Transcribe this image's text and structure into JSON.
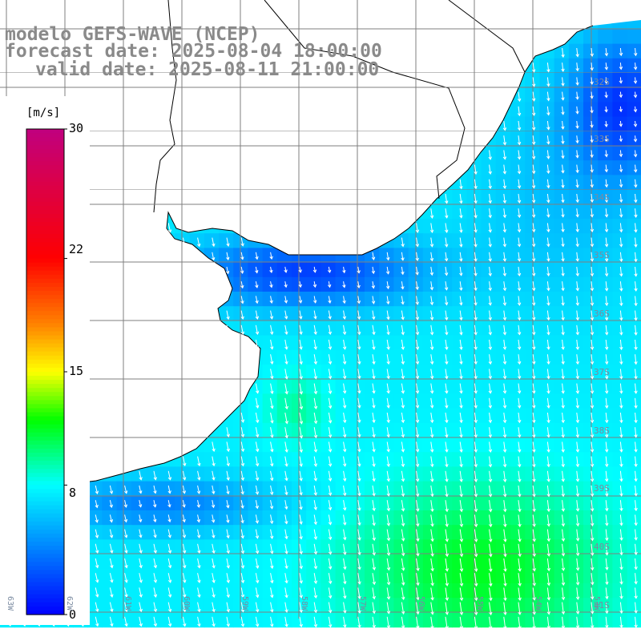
{
  "title": {
    "line1": "modelo GEFS-WAVE (NCEP)",
    "line2": "forecast date: 2025-08-04 18:00:00",
    "line3": "valid date: 2025-08-11 21:00:00"
  },
  "colorbar": {
    "unit": "[m/s]",
    "ticks": [
      "30",
      "22",
      "15",
      "8",
      "0"
    ],
    "tick_values": [
      30,
      22,
      15,
      8,
      0
    ],
    "min": 0,
    "max": 30,
    "stops": [
      {
        "value": 0,
        "color": "#0000ff"
      },
      {
        "value": 4,
        "color": "#0080ff"
      },
      {
        "value": 8,
        "color": "#00ffff"
      },
      {
        "value": 12,
        "color": "#00ff00"
      },
      {
        "value": 15,
        "color": "#ffff00"
      },
      {
        "value": 18,
        "color": "#ff8000"
      },
      {
        "value": 22,
        "color": "#ff0000"
      },
      {
        "value": 30,
        "color": "#c0007f"
      }
    ]
  },
  "grid": {
    "lat_labels": [
      "32S",
      "33S",
      "34S",
      "35S",
      "36S",
      "37S",
      "38S",
      "39S",
      "40S",
      "41S"
    ],
    "lon_labels": [
      "63W",
      "62W",
      "61W",
      "60W",
      "59W",
      "58W",
      "57W",
      "56W",
      "55W",
      "54W",
      "53W"
    ]
  },
  "colors": {
    "land": "#ffffff",
    "coast": "#000000",
    "grid": "#7f7f7f",
    "arrows": "#ffffff"
  },
  "chart_data": {
    "type": "heatmap",
    "variable": "wind speed",
    "unit": "m/s",
    "lon_range": [
      -63.5,
      -52.6
    ],
    "lat_range": [
      -41.4,
      -31.7
    ],
    "vector_direction_dominant": "toward SSE",
    "speed_regions": [
      {
        "area": "Rio de la Plata estuary",
        "speed": 2
      },
      {
        "area": "Uruguay coast offshore",
        "speed": 5
      },
      {
        "area": "NE corner off Brazil",
        "speed": 2
      },
      {
        "area": "Central shelf",
        "speed": 8
      },
      {
        "area": "SE open ocean",
        "speed": 11
      },
      {
        "area": "Argentine coast south",
        "speed": 4
      }
    ]
  }
}
